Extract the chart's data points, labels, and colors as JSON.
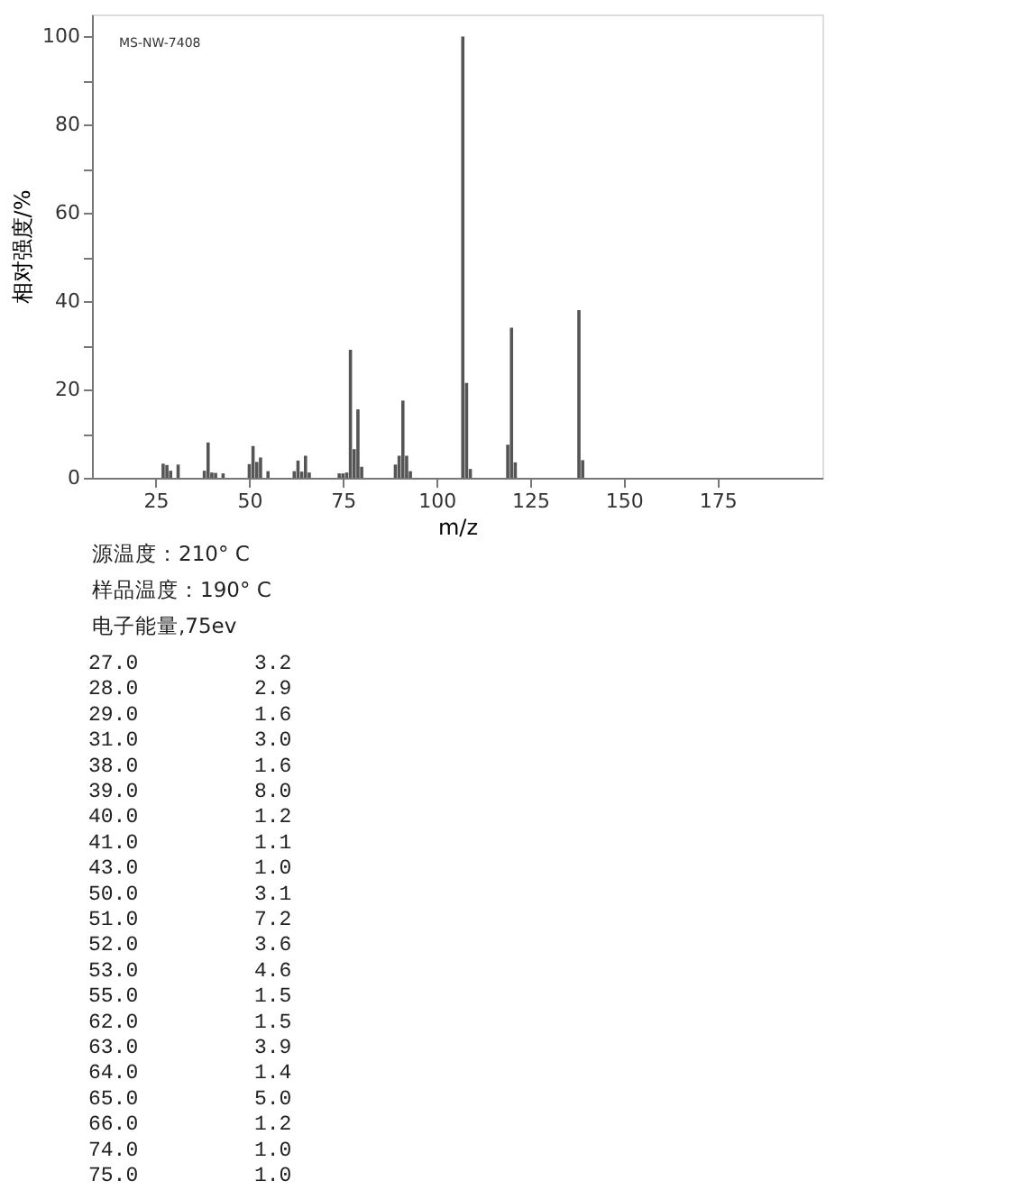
{
  "chart_data": {
    "type": "bar",
    "xlabel": "m/z",
    "ylabel": "相对强度/%",
    "x": [
      27,
      28,
      29,
      31,
      38,
      39,
      40,
      41,
      43,
      50,
      51,
      52,
      53,
      55,
      62,
      63,
      64,
      65,
      66,
      74,
      75,
      76,
      77,
      78,
      79,
      80,
      89,
      90,
      91,
      92,
      93,
      107,
      108,
      109,
      119,
      120,
      121,
      138,
      139
    ],
    "values": [
      3.2,
      2.9,
      1.6,
      3.0,
      1.6,
      8.0,
      1.2,
      1.1,
      1.0,
      3.1,
      7.2,
      3.6,
      4.6,
      1.5,
      1.5,
      3.9,
      1.4,
      5.0,
      1.2,
      1.0,
      1.0,
      1.2,
      29,
      6.5,
      15.5,
      2.5,
      3,
      5,
      17.5,
      5,
      1.5,
      100,
      21.5,
      2,
      7.5,
      34,
      3.5,
      38,
      4
    ],
    "color": "#555555",
    "xlim": [
      8,
      203
    ],
    "xticks": [
      25,
      50,
      75,
      100,
      125,
      150,
      175
    ],
    "ylim": [
      0,
      105
    ],
    "yticks": [
      0,
      {
        "value": 10,
        "label": null
      },
      20,
      {
        "value": 30,
        "label": null
      },
      40,
      {
        "value": 50,
        "label": null
      },
      60,
      {
        "value": 70,
        "label": null
      },
      80,
      {
        "value": 90,
        "label": null
      },
      100
    ],
    "grid": false,
    "annotations": [
      "MS-NW-7408",
      "源温度：210° C",
      "样品温度：190° C",
      "电子能量,75ev",
      "27.0 3.2",
      "28.0 2.9",
      "29.0 1.6",
      "31.0 3.0",
      "38.0 1.6",
      "39.0 8.0",
      "40.0 1.2",
      "41.0 1.1",
      "43.0 1.0",
      "50.0 3.1",
      "51.0 7.2",
      "52.0 3.6",
      "53.0 4.6",
      "55.0 1.5",
      "62.0 1.5",
      "63.0 3.9",
      "64.0 1.4",
      "65.0 5.0",
      "66.0 1.2",
      "74.0 1.0",
      "75.0 1.0"
    ]
  }
}
